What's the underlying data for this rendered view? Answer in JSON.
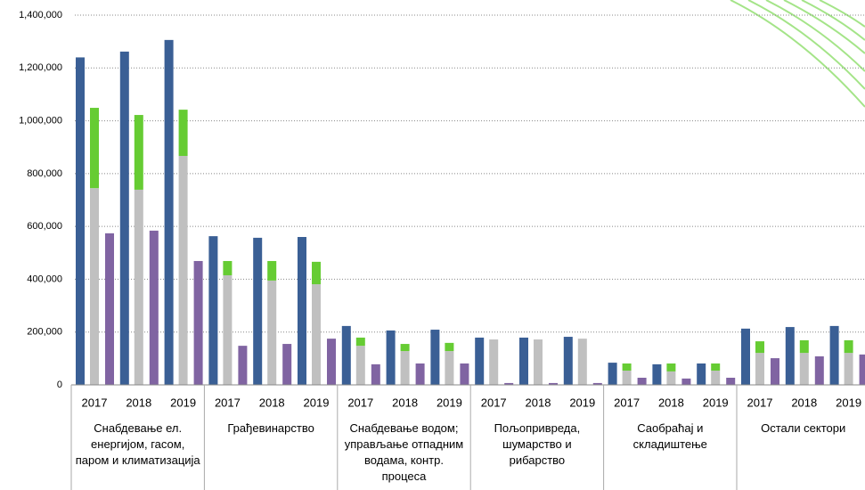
{
  "chart_data": {
    "type": "bar",
    "group_labels": [
      "Снабдевање ел. енергијом, гасом, паром и климатизација",
      "Грађевинарство",
      "Снабдевање водом; управљање отпадним водама, контр. процеса",
      "Пољопривреда, шумарство и рибарство",
      "Саобраћај и складиштење",
      "Остали сектори"
    ],
    "categories": [
      "2017",
      "2018",
      "2019",
      "2017",
      "2018",
      "2019",
      "2017",
      "2018",
      "2019",
      "2017",
      "2018",
      "2019",
      "2017",
      "2018",
      "2019",
      "2017",
      "2018",
      "2019"
    ],
    "series": [
      {
        "color": "#3a5f95",
        "values": [
          1240000,
          1262000,
          1306000,
          563000,
          557000,
          560000,
          223000,
          206000,
          209000,
          179000,
          179000,
          182000,
          84000,
          78000,
          81000,
          213000,
          219000,
          223000
        ]
      },
      {
        "color": "#c0c0c0",
        "stack": "a",
        "values": [
          745000,
          739000,
          867000,
          415000,
          395000,
          381000,
          148000,
          128000,
          128000,
          172000,
          172000,
          175000,
          54000,
          51000,
          54000,
          121000,
          121000,
          121000
        ]
      },
      {
        "color": "#66cc33",
        "stack": "a",
        "values": [
          304000,
          283000,
          175000,
          54000,
          74000,
          85000,
          31000,
          27000,
          31000,
          0,
          0,
          0,
          27000,
          30000,
          27000,
          44000,
          48000,
          48000
        ]
      },
      {
        "color": "#8064a2",
        "values": [
          574000,
          584000,
          469000,
          148000,
          155000,
          175000,
          78000,
          81000,
          81000,
          7000,
          7000,
          7000,
          27000,
          24000,
          27000,
          101000,
          108000,
          115000
        ]
      }
    ],
    "ylim": [
      0,
      1400000
    ],
    "yticks": [
      0,
      {
        "value": 200000,
        "label": "200,000"
      },
      {
        "value": 400000,
        "label": "400,000"
      },
      {
        "value": 600000,
        "label": "600,000"
      },
      {
        "value": 800000,
        "label": "800,000"
      },
      {
        "value": 1000000,
        "label": "1,000,000"
      },
      {
        "value": 1200000,
        "label": "1,200,000"
      },
      {
        "value": 1400000,
        "label": "1,400,000"
      }
    ],
    "grid": true
  }
}
